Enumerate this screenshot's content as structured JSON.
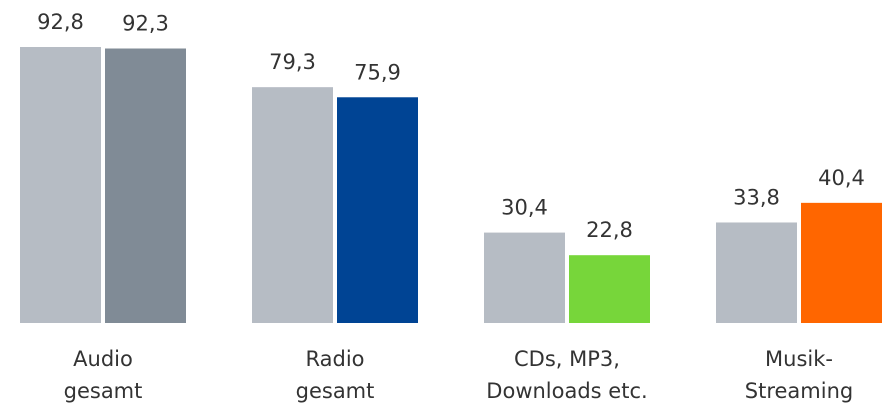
{
  "chart_data": {
    "type": "bar",
    "categories": [
      [
        "Audio",
        "gesamt"
      ],
      [
        "Radio",
        "gesamt"
      ],
      [
        "CDs, MP3,",
        "Downloads etc."
      ],
      [
        "Musik-",
        "Streaming"
      ]
    ],
    "series": [
      {
        "color": "#b6bcc4",
        "values": [
          92.8,
          79.3,
          30.4,
          33.8
        ],
        "value_labels": [
          "92,8",
          "79,3",
          "30,4",
          "33,8"
        ]
      },
      {
        "colors": [
          "#808b96",
          "#004494",
          "#77d63a",
          "#ff6600"
        ],
        "values": [
          92.3,
          75.9,
          22.8,
          40.4
        ],
        "value_labels": [
          "92,3",
          "75,9",
          "22,8",
          "40,4"
        ]
      }
    ],
    "ylim": [
      0,
      100
    ]
  }
}
